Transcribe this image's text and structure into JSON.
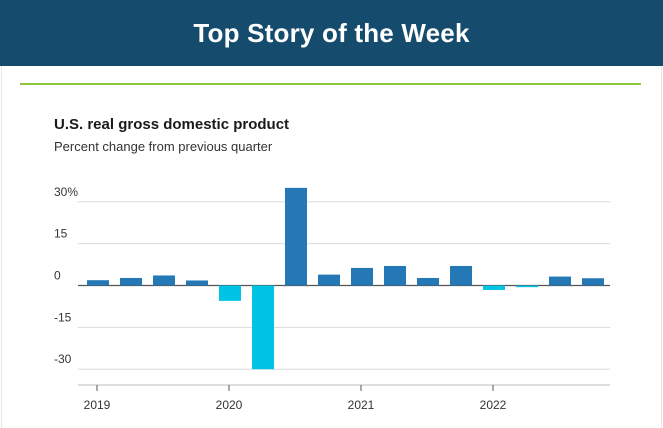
{
  "banner": {
    "title": "Top Story of the Week"
  },
  "colors": {
    "banner_bg": "#154b6c",
    "divider": "#8dc63f",
    "positive_bar": "#2378b5",
    "negative_bar": "#00c4e6"
  },
  "chart_data": {
    "type": "bar",
    "title": "U.S. real gross domestic product",
    "subtitle": "Percent change from previous quarter",
    "xlabel": "",
    "ylabel": "",
    "ylim": [
      -30,
      35
    ],
    "yticks": [
      {
        "value": 30,
        "label": "30%"
      },
      {
        "value": 15,
        "label": "15"
      },
      {
        "value": 0,
        "label": "0"
      },
      {
        "value": -15,
        "label": "-15"
      },
      {
        "value": -30,
        "label": "-30"
      }
    ],
    "year_labels": [
      {
        "label": "2019",
        "quarter_index": 0
      },
      {
        "label": "2020",
        "quarter_index": 4
      },
      {
        "label": "2021",
        "quarter_index": 8
      },
      {
        "label": "2022",
        "quarter_index": 12
      }
    ],
    "grid": true,
    "categories": [
      "2019 Q1",
      "2019 Q2",
      "2019 Q3",
      "2019 Q4",
      "2020 Q1",
      "2020 Q2",
      "2020 Q3",
      "2020 Q4",
      "2021 Q1",
      "2021 Q2",
      "2021 Q3",
      "2021 Q4",
      "2022 Q1",
      "2022 Q2",
      "2022 Q3",
      "2022 Q4"
    ],
    "values": [
      1.9,
      2.7,
      3.6,
      1.8,
      -5.5,
      -30.0,
      35.0,
      3.9,
      6.3,
      7.0,
      2.7,
      7.0,
      -1.6,
      -0.6,
      3.2,
      2.6
    ]
  }
}
